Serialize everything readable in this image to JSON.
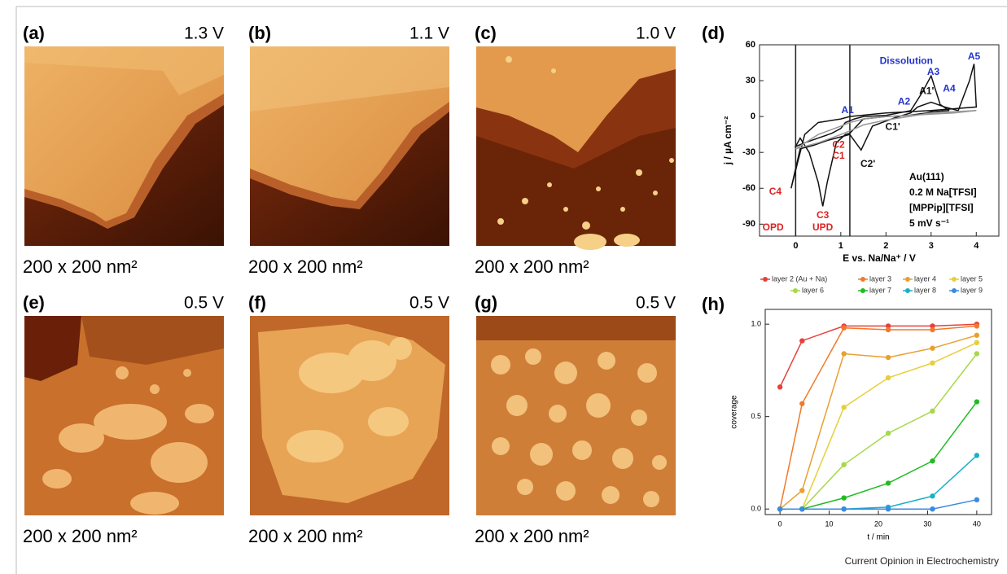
{
  "panels": [
    {
      "label": "(a)",
      "voltage": "1.3 V",
      "scale": "200 x 200 nm²"
    },
    {
      "label": "(b)",
      "voltage": "1.1 V",
      "scale": "200 x 200 nm²"
    },
    {
      "label": "(c)",
      "voltage": "1.0 V",
      "scale": "200 x 200 nm²"
    },
    {
      "label": "(e)",
      "voltage": "0.5 V",
      "scale": "200 x 200 nm²"
    },
    {
      "label": "(f)",
      "voltage": "0.5 V",
      "scale": "200 x 200 nm²"
    },
    {
      "label": "(g)",
      "voltage": "0.5 V",
      "scale": "200 x 200 nm²"
    }
  ],
  "chart_data": [
    {
      "type": "line",
      "panel_label": "(d)",
      "xlabel": "E vs. Na/Na⁺ / V",
      "ylabel": "j / µA cm⁻²",
      "xlim": [
        -0.8,
        4.5
      ],
      "ylim": [
        -100,
        60
      ],
      "xticks": [
        0,
        1,
        2,
        3,
        4
      ],
      "yticks": [
        -90,
        -60,
        -30,
        0,
        30,
        60
      ],
      "vlines": [
        0,
        1.2
      ],
      "series": [
        {
          "color": "#111111",
          "x": [
            -0.1,
            0.1,
            0.4,
            0.7,
            1.0,
            1.2,
            1.45,
            1.7,
            2.2,
            2.55,
            2.7,
            3.0,
            3.3,
            3.6,
            3.85,
            3.95,
            4.0,
            3.0,
            2.0,
            1.2,
            1.0,
            0.5,
            0.2,
            -0.1
          ],
          "values": [
            -60,
            -27,
            -24,
            -20,
            -17,
            -15,
            -28,
            -8,
            -1,
            3,
            8,
            12,
            8,
            5,
            30,
            44,
            8,
            5,
            3,
            0,
            -2,
            -5,
            -15,
            -60
          ]
        },
        {
          "color": "#111111",
          "x": [
            3.4,
            3.0,
            2.9,
            2.7,
            2.5,
            2.0,
            1.5,
            1.2,
            1.1,
            0.9,
            0.7,
            0.6,
            0.5,
            0.3,
            0.1,
            0.0,
            0.2,
            0.5,
            0.8,
            1.0,
            1.1,
            1.3,
            1.5,
            2.0,
            2.55,
            2.8,
            3.0,
            3.2,
            3.4
          ],
          "values": [
            5,
            4,
            3,
            2,
            1,
            0,
            -2,
            -14,
            -15,
            -22,
            -55,
            -75,
            -55,
            -30,
            -18,
            -25,
            -22,
            -18,
            -14,
            -10,
            -5,
            -2,
            0,
            1,
            5,
            20,
            34,
            10,
            5
          ]
        },
        {
          "color": "#999999",
          "x": [
            0,
            0.5,
            1.0,
            1.2,
            1.5,
            2.0,
            2.5,
            3.0,
            3.5,
            4.0,
            3.5,
            3.0,
            2.5,
            2.0,
            1.5,
            1.2,
            1.0,
            0.5,
            0
          ],
          "values": [
            -27,
            -22,
            -15,
            -12,
            -7,
            -3,
            0,
            3,
            4,
            5,
            3,
            2,
            1,
            0,
            -2,
            -5,
            -8,
            -15,
            -27
          ]
        }
      ],
      "annotations": [
        {
          "text": "Dissolution",
          "x": 2.45,
          "y": 46,
          "color": "#2233cc"
        },
        {
          "text": "A1",
          "x": 1.15,
          "y": 5,
          "color": "#2233cc"
        },
        {
          "text": "A2",
          "x": 2.4,
          "y": 12,
          "color": "#2233cc"
        },
        {
          "text": "A3",
          "x": 3.05,
          "y": 37,
          "color": "#2233cc"
        },
        {
          "text": "A4",
          "x": 3.4,
          "y": 23,
          "color": "#2233cc"
        },
        {
          "text": "A5",
          "x": 3.95,
          "y": 50,
          "color": "#2233cc"
        },
        {
          "text": "A1'",
          "x": 2.9,
          "y": 21,
          "color": "#111111"
        },
        {
          "text": "C1'",
          "x": 2.15,
          "y": -9,
          "color": "#111111"
        },
        {
          "text": "C2'",
          "x": 1.6,
          "y": -40,
          "color": "#111111"
        },
        {
          "text": "C2",
          "x": 0.95,
          "y": -24,
          "color": "#dd2222"
        },
        {
          "text": "C1",
          "x": 0.95,
          "y": -33,
          "color": "#dd2222"
        },
        {
          "text": "C4",
          "x": -0.45,
          "y": -63,
          "color": "#dd2222"
        },
        {
          "text": "C3",
          "x": 0.6,
          "y": -83,
          "color": "#dd2222"
        },
        {
          "text": "UPD",
          "x": 0.6,
          "y": -93,
          "color": "#dd2222"
        },
        {
          "text": "OPD",
          "x": -0.5,
          "y": -93,
          "color": "#dd2222"
        }
      ],
      "info": [
        "Au(111)",
        "0.2 M Na[TFSI]",
        "[MPPip][TFSI]",
        "5 mV s⁻¹"
      ]
    },
    {
      "type": "line",
      "panel_label": "(h)",
      "xlabel": "t / min",
      "ylabel": "coverage",
      "xlim": [
        -3,
        43
      ],
      "ylim": [
        -0.03,
        1.08
      ],
      "xticks": [
        0,
        10,
        20,
        30,
        40
      ],
      "yticks": [
        {
          "value": 0,
          "label": "0.0"
        },
        {
          "value": 0.5,
          "label": "0.5"
        },
        {
          "value": 1,
          "label": "1.0"
        }
      ],
      "x": [
        0,
        4.5,
        13,
        22,
        31,
        40
      ],
      "legend": "top",
      "series": [
        {
          "name": "layer 2 (Au + Na)",
          "color": "#e8403a",
          "values": [
            0.66,
            0.91,
            0.99,
            0.99,
            0.99,
            1.0
          ]
        },
        {
          "name": "layer 3",
          "color": "#f07a2a",
          "values": [
            0,
            0.57,
            0.98,
            0.97,
            0.97,
            0.99
          ]
        },
        {
          "name": "layer 4",
          "color": "#e8a030",
          "values": [
            0,
            0.1,
            0.84,
            0.82,
            0.87,
            0.94
          ]
        },
        {
          "name": "layer 5",
          "color": "#e6cf3a",
          "values": [
            0,
            0,
            0.55,
            0.71,
            0.79,
            0.9
          ]
        },
        {
          "name": "layer 6",
          "color": "#a6d84a",
          "values": [
            0,
            0,
            0.24,
            0.41,
            0.53,
            0.84
          ]
        },
        {
          "name": "layer 7",
          "color": "#22bb22",
          "values": [
            0,
            0,
            0.06,
            0.14,
            0.26,
            0.58
          ]
        },
        {
          "name": "layer 8",
          "color": "#1ab0c8",
          "values": [
            0,
            0,
            0,
            0.01,
            0.07,
            0.29
          ]
        },
        {
          "name": "layer 9",
          "color": "#3a8ae0",
          "values": [
            0,
            0,
            0,
            0,
            0,
            0.05
          ]
        }
      ]
    }
  ],
  "footer": "Current Opinion in Electrochemistry"
}
